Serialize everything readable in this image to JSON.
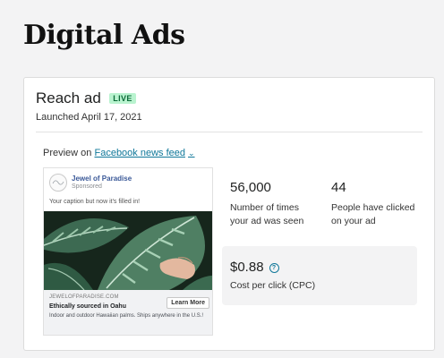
{
  "page": {
    "title": "Digital Ads"
  },
  "ad": {
    "name": "Reach ad",
    "status_badge": "LIVE",
    "launched": "Launched April 17, 2021"
  },
  "preview": {
    "prefix": "Preview on",
    "placement": "Facebook news feed",
    "placement_icon": "chevron-down-icon"
  },
  "fb_post": {
    "page_name": "Jewel of Paradise",
    "sponsored": "Sponsored",
    "caption": "Your caption but now it's filled in!",
    "domain": "JEWELOFPARADISE.COM",
    "headline": "Ethically sourced in Oahu",
    "description": "Indoor and outdoor Hawaiian palms. Ships anywhere in the U.S.!",
    "cta_label": "Learn More"
  },
  "stats": {
    "impressions": {
      "value": "56,000",
      "label": "Number of times your ad was seen"
    },
    "clicks": {
      "value": "44",
      "label": "People have clicked on your ad"
    },
    "cpc": {
      "value": "$0.88",
      "label": "Cost per click (CPC)",
      "icon": "help-icon"
    }
  },
  "colors": {
    "accent": "#10789a",
    "live_badge_bg": "#b9f3cf",
    "live_badge_text": "#0c6a38",
    "page_bg": "#f3f3f4"
  }
}
